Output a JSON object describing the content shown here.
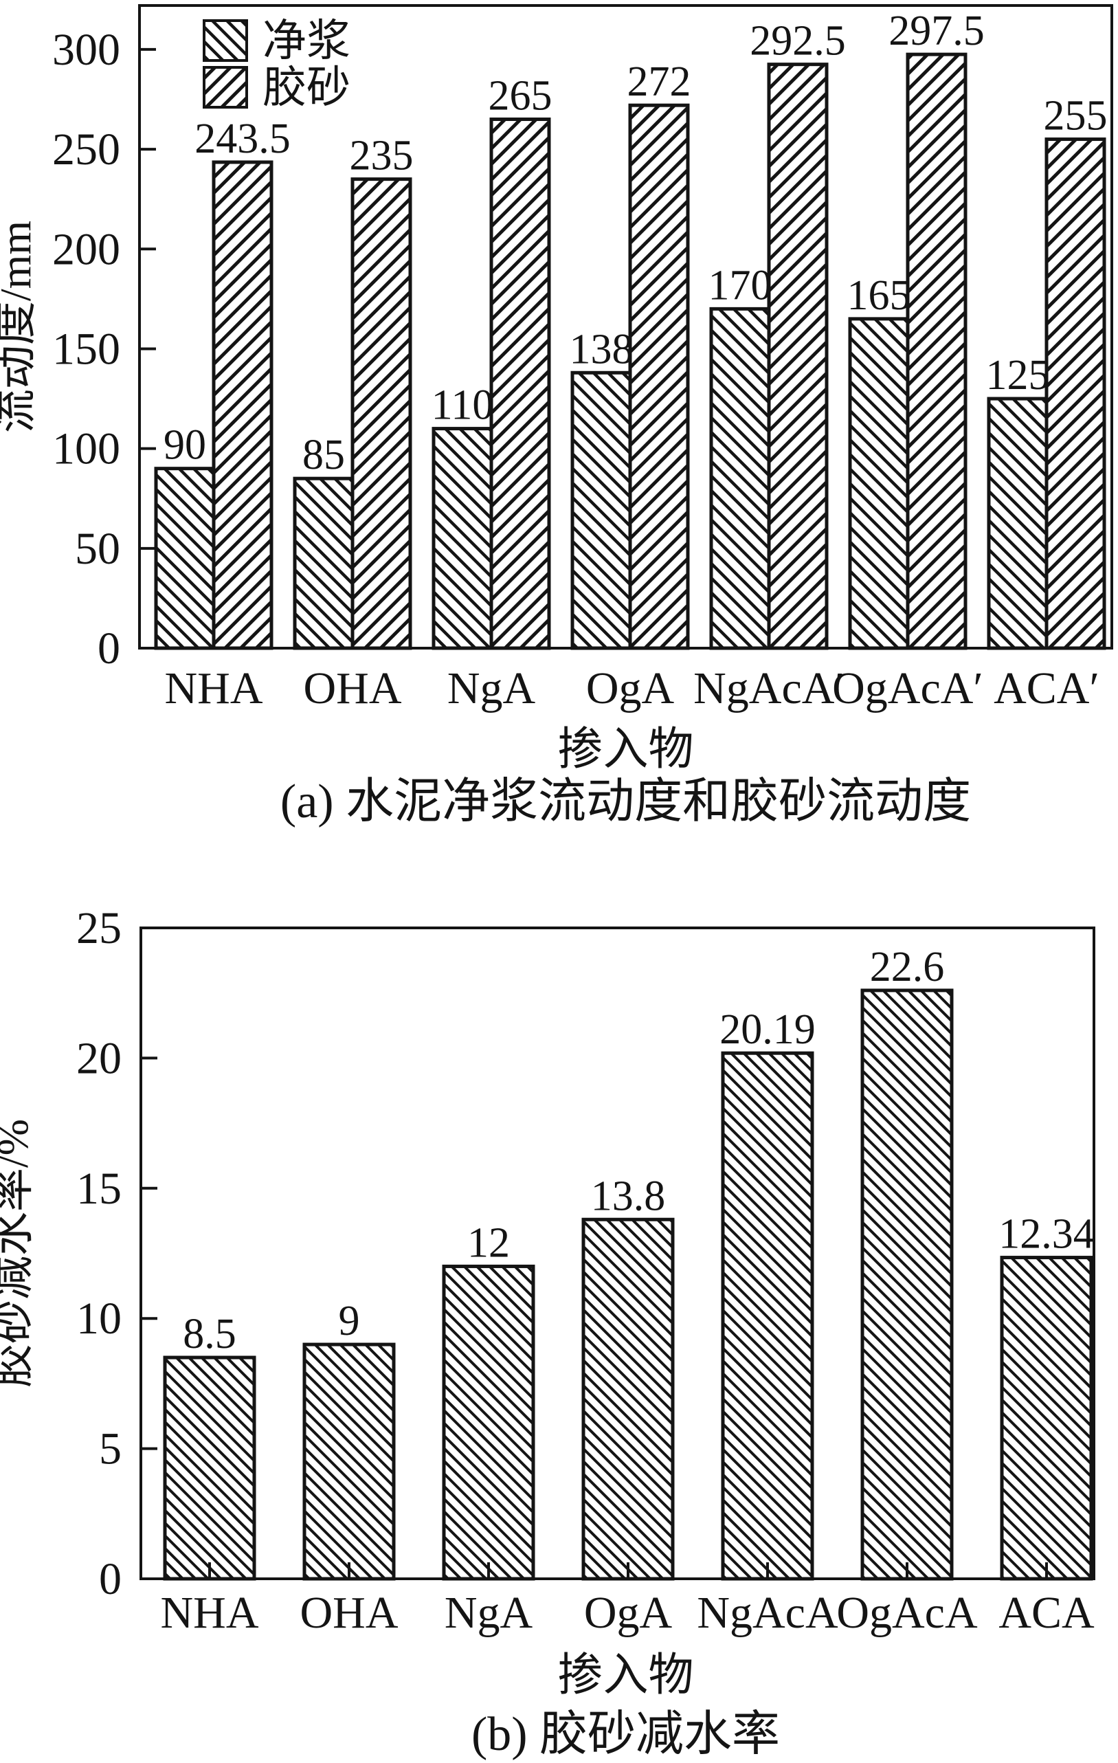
{
  "colors": {
    "ink": "#141414",
    "background": "#ffffff"
  },
  "chart_data": [
    {
      "id": "a",
      "type": "bar",
      "caption": "(a) 水泥净浆流动度和胶砂流动度",
      "xlabel": "掺入物",
      "ylabel": "流动度/mm",
      "ylim": [
        0,
        322
      ],
      "yticks": [
        0,
        50,
        100,
        150,
        200,
        250,
        300
      ],
      "grid": false,
      "legend_position": "top-left-inside",
      "categories": [
        "NHA",
        "OHA",
        "NgA",
        "OgA",
        "NgAcA′",
        "OgAcA′",
        "ACA′"
      ],
      "series": [
        {
          "name": "净浆",
          "hatch": "/",
          "values": [
            90,
            85,
            110,
            138,
            170,
            165,
            125
          ]
        },
        {
          "name": "胶砂",
          "hatch": "\\",
          "values": [
            243.5,
            235,
            265,
            272,
            292.5,
            297.5,
            255
          ]
        }
      ]
    },
    {
      "id": "b",
      "type": "bar",
      "caption": "(b) 胶砂减水率",
      "xlabel": "掺入物",
      "ylabel": "胶砂减水率/%",
      "ylim": [
        0,
        25
      ],
      "yticks": [
        0,
        5,
        10,
        15,
        20,
        25
      ],
      "grid": false,
      "legend_position": null,
      "categories": [
        "NHA",
        "OHA",
        "NgA",
        "OgA",
        "NgAcA",
        "OgAcA",
        "ACA"
      ],
      "series": [
        {
          "name": "",
          "hatch": "/",
          "values": [
            8.5,
            9,
            12,
            13.8,
            20.19,
            22.6,
            12.34
          ]
        }
      ]
    }
  ]
}
